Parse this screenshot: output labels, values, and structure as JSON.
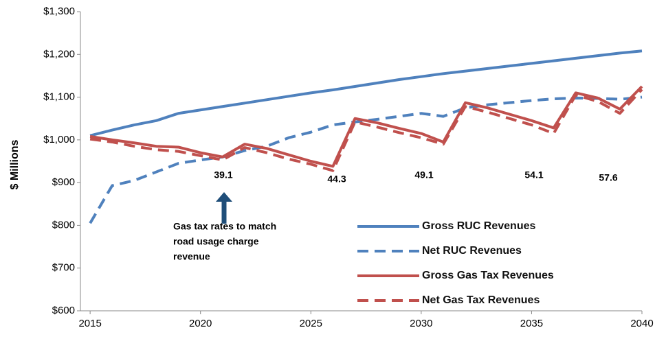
{
  "chart_data": {
    "type": "line",
    "ylabel": "$ Millions",
    "x": [
      2015,
      2016,
      2017,
      2018,
      2019,
      2020,
      2021,
      2022,
      2023,
      2024,
      2025,
      2026,
      2027,
      2028,
      2029,
      2030,
      2031,
      2032,
      2033,
      2034,
      2035,
      2036,
      2037,
      2038,
      2039,
      2040
    ],
    "series": [
      {
        "name": "Gross RUC Revenues",
        "color": "#4f81bd",
        "dash": false,
        "values": [
          1010,
          1023,
          1035,
          1045,
          1062,
          1070,
          1078,
          1086,
          1094,
          1102,
          1110,
          1117,
          1125,
          1133,
          1141,
          1148,
          1155,
          1161,
          1167,
          1173,
          1179,
          1185,
          1191,
          1197,
          1203,
          1208
        ]
      },
      {
        "name": "Net RUC Revenues",
        "color": "#4f81bd",
        "dash": true,
        "values": [
          805,
          893,
          905,
          925,
          945,
          953,
          960,
          975,
          985,
          1005,
          1018,
          1035,
          1042,
          1048,
          1055,
          1062,
          1055,
          1075,
          1082,
          1087,
          1092,
          1096,
          1098,
          1097,
          1095,
          1100
        ]
      },
      {
        "name": "Gross Gas Tax Revenues",
        "color": "#c0504d",
        "dash": false,
        "values": [
          1008,
          1000,
          993,
          985,
          983,
          970,
          960,
          990,
          980,
          965,
          950,
          938,
          1050,
          1040,
          1027,
          1015,
          995,
          1087,
          1075,
          1060,
          1045,
          1028,
          1110,
          1098,
          1072,
          1125
        ]
      },
      {
        "name": "Net Gas Tax Revenues",
        "color": "#c0504d",
        "dash": true,
        "values": [
          1002,
          995,
          985,
          977,
          973,
          963,
          953,
          982,
          970,
          955,
          943,
          928,
          1042,
          1030,
          1017,
          1005,
          990,
          1078,
          1065,
          1050,
          1035,
          1015,
          1105,
          1090,
          1062,
          1118
        ]
      }
    ],
    "annotations": [
      "39.1",
      "44.3",
      "49.1",
      "54.1",
      "57.6",
      "Gas tax rates to match",
      "road usage charge",
      "revenue"
    ],
    "xlim": [
      2014.56,
      2040
    ],
    "xticks": [
      2015,
      2020,
      2025,
      2030,
      2035,
      2040
    ],
    "ylim": [
      600,
      1300
    ],
    "yticks": [
      {
        "value": 600,
        "label": "$600"
      },
      {
        "value": 700,
        "label": "$700"
      },
      {
        "value": 800,
        "label": "$800"
      },
      {
        "value": 900,
        "label": "$900"
      },
      {
        "value": 1000,
        "label": "$1,000"
      },
      {
        "value": 1100,
        "label": "$1,100"
      },
      {
        "value": 1200,
        "label": "$1,200"
      },
      {
        "value": 1300,
        "label": "$1,300"
      }
    ],
    "grid": false,
    "legend": "right"
  }
}
